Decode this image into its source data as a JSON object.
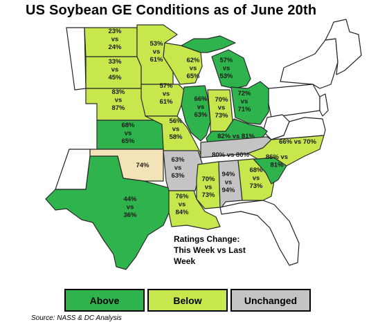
{
  "title": "US Soybean GE Conditions as of June 20th",
  "caption": [
    "Ratings Change:",
    "This Week vs Last",
    "Week"
  ],
  "legend": [
    {
      "label": "Above",
      "color": "#2fb34d"
    },
    {
      "label": "Below",
      "color": "#c6e84d"
    },
    {
      "label": "Unchanged",
      "color": "#c4c4c4"
    }
  ],
  "source": "Source: NASS & DC Analysis",
  "colors": {
    "Above": "#2fb34d",
    "Below": "#c6e84d",
    "Unchanged": "#c4c4c4",
    "Single": "#f3e4b7"
  },
  "states": [
    {
      "id": "nd",
      "status": "Below",
      "label": [
        "23%",
        "vs",
        "24%"
      ]
    },
    {
      "id": "sd",
      "status": "Below",
      "label": [
        "33%",
        "vs",
        "45%"
      ]
    },
    {
      "id": "ne",
      "status": "Below",
      "label": [
        "83%",
        "vs",
        "87%"
      ]
    },
    {
      "id": "ks",
      "status": "Above",
      "label": [
        "68%",
        "vs",
        "65%"
      ]
    },
    {
      "id": "ok",
      "status": "Single",
      "label": [
        "74%"
      ]
    },
    {
      "id": "tx",
      "status": "Above",
      "label": [
        "44%",
        "vs",
        "36%"
      ]
    },
    {
      "id": "mn",
      "status": "Below",
      "label": [
        "53%",
        "vs",
        "61%"
      ]
    },
    {
      "id": "ia",
      "status": "Below",
      "label": [
        "57%",
        "vs",
        "61%"
      ]
    },
    {
      "id": "mo",
      "status": "Below",
      "label": [
        "56%",
        "vs",
        "58%"
      ]
    },
    {
      "id": "ar",
      "status": "Unchanged",
      "label": [
        "63%",
        "vs",
        "63%"
      ]
    },
    {
      "id": "la",
      "status": "Below",
      "label": [
        "76%",
        "vs",
        "84%"
      ]
    },
    {
      "id": "wi",
      "status": "Below",
      "label": [
        "62%",
        "vs",
        "65%"
      ]
    },
    {
      "id": "il",
      "status": "Above",
      "label": [
        "66%",
        "vs",
        "63%"
      ]
    },
    {
      "id": "mi",
      "status": "Above",
      "label": [
        "57%",
        "vs",
        "53%"
      ]
    },
    {
      "id": "in",
      "status": "Below",
      "label": [
        "70%",
        "vs",
        "73%"
      ]
    },
    {
      "id": "oh",
      "status": "Above",
      "label": [
        "72%",
        "vs",
        "71%"
      ]
    },
    {
      "id": "ky",
      "status": "Above",
      "label": [
        "82% vs 81%"
      ]
    },
    {
      "id": "tn",
      "status": "Unchanged",
      "label": [
        "80% vs 80%"
      ]
    },
    {
      "id": "ms",
      "status": "Below",
      "label": [
        "70%",
        "vs",
        "73%"
      ]
    },
    {
      "id": "al",
      "status": "Unchanged",
      "label": [
        "94%",
        "vs",
        "94%"
      ]
    },
    {
      "id": "ga",
      "status": "Below",
      "label": [
        "68%",
        "vs",
        "73%"
      ]
    },
    {
      "id": "sc",
      "status": "Above",
      "label": [
        "86% vs",
        "81%"
      ]
    },
    {
      "id": "nc",
      "status": "Below",
      "label": [
        "66% vs 70%"
      ]
    }
  ]
}
